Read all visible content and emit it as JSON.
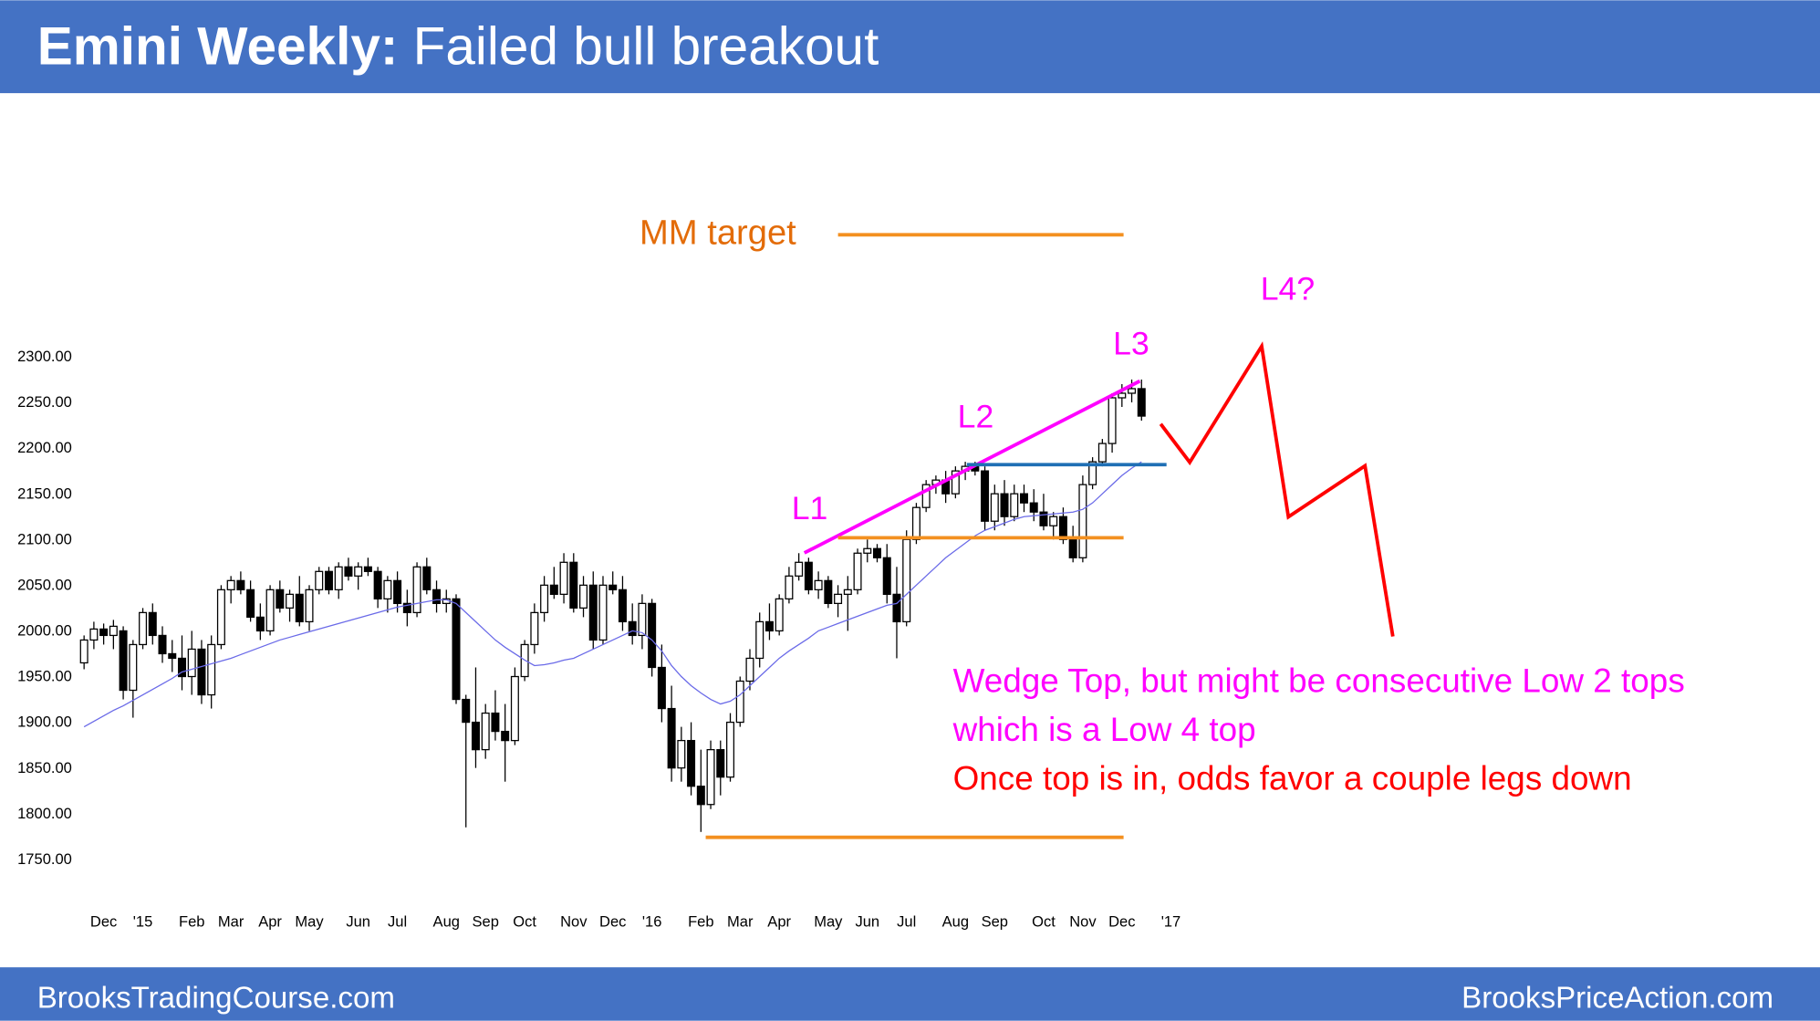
{
  "chart_data": {
    "type": "candlestick",
    "title_bold": "Emini Weekly:",
    "title_rest": "Failed bull breakout",
    "footer_left": "BrooksTradingCourse.com",
    "footer_right": "BrooksPriceAction.com",
    "up_color": "#ffffff",
    "down_color": "#000000",
    "ma_color": "#6a6ae8",
    "ylim": [
      1750,
      2300
    ],
    "yticks": [
      {
        "value": 1750,
        "label": "1750.00"
      },
      {
        "value": 1800,
        "label": "1800.00"
      },
      {
        "value": 1850,
        "label": "1850.00"
      },
      {
        "value": 1900,
        "label": "1900.00"
      },
      {
        "value": 1950,
        "label": "1950.00"
      },
      {
        "value": 2000,
        "label": "2000.00"
      },
      {
        "value": 2050,
        "label": "2050.00"
      },
      {
        "value": 2100,
        "label": "2100.00"
      },
      {
        "value": 2150,
        "label": "2150.00"
      },
      {
        "value": 2200,
        "label": "2200.00"
      },
      {
        "value": 2250,
        "label": "2250.00"
      },
      {
        "value": 2300,
        "label": "2300.00"
      }
    ],
    "xlim": [
      -1,
      123
    ],
    "xticks": [
      {
        "value": 2,
        "label": "Dec"
      },
      {
        "value": 6,
        "label": "'15"
      },
      {
        "value": 11,
        "label": "Feb"
      },
      {
        "value": 15,
        "label": "Mar"
      },
      {
        "value": 19,
        "label": "Apr"
      },
      {
        "value": 23,
        "label": "May"
      },
      {
        "value": 28,
        "label": "Jun"
      },
      {
        "value": 32,
        "label": "Jul"
      },
      {
        "value": 37,
        "label": "Aug"
      },
      {
        "value": 41,
        "label": "Sep"
      },
      {
        "value": 45,
        "label": "Oct"
      },
      {
        "value": 50,
        "label": "Nov"
      },
      {
        "value": 54,
        "label": "Dec"
      },
      {
        "value": 58,
        "label": "'16"
      },
      {
        "value": 63,
        "label": "Feb"
      },
      {
        "value": 67,
        "label": "Mar"
      },
      {
        "value": 71,
        "label": "Apr"
      },
      {
        "value": 76,
        "label": "May"
      },
      {
        "value": 80,
        "label": "Jun"
      },
      {
        "value": 84,
        "label": "Jul"
      },
      {
        "value": 89,
        "label": "Aug"
      },
      {
        "value": 93,
        "label": "Sep"
      },
      {
        "value": 98,
        "label": "Oct"
      },
      {
        "value": 102,
        "label": "Nov"
      },
      {
        "value": 106,
        "label": "Dec"
      },
      {
        "value": 111,
        "label": "'17"
      }
    ],
    "ohlc": [
      [
        1965,
        1995,
        1958,
        1990
      ],
      [
        1990,
        2010,
        1980,
        2002
      ],
      [
        2002,
        2008,
        1985,
        1995
      ],
      [
        1995,
        2012,
        1980,
        2005
      ],
      [
        2000,
        2005,
        1925,
        1935
      ],
      [
        1935,
        1990,
        1905,
        1985
      ],
      [
        1985,
        2025,
        1980,
        2020
      ],
      [
        2020,
        2030,
        1985,
        1995
      ],
      [
        1995,
        2005,
        1965,
        1975
      ],
      [
        1975,
        1990,
        1955,
        1970
      ],
      [
        1970,
        1995,
        1935,
        1950
      ],
      [
        1950,
        2000,
        1930,
        1980
      ],
      [
        1980,
        1990,
        1920,
        1930
      ],
      [
        1930,
        1995,
        1915,
        1985
      ],
      [
        1985,
        2050,
        1980,
        2045
      ],
      [
        2045,
        2060,
        2030,
        2055
      ],
      [
        2055,
        2065,
        2040,
        2045
      ],
      [
        2045,
        2055,
        2010,
        2015
      ],
      [
        2015,
        2030,
        1990,
        2000
      ],
      [
        2000,
        2050,
        1995,
        2045
      ],
      [
        2045,
        2055,
        2020,
        2025
      ],
      [
        2025,
        2045,
        2010,
        2040
      ],
      [
        2040,
        2060,
        2005,
        2010
      ],
      [
        2010,
        2050,
        2000,
        2045
      ],
      [
        2045,
        2070,
        2040,
        2065
      ],
      [
        2065,
        2070,
        2040,
        2045
      ],
      [
        2045,
        2075,
        2035,
        2070
      ],
      [
        2070,
        2080,
        2055,
        2060
      ],
      [
        2060,
        2075,
        2045,
        2070
      ],
      [
        2070,
        2080,
        2060,
        2065
      ],
      [
        2065,
        2070,
        2025,
        2035
      ],
      [
        2035,
        2060,
        2020,
        2055
      ],
      [
        2055,
        2065,
        2020,
        2030
      ],
      [
        2030,
        2045,
        2005,
        2020
      ],
      [
        2020,
        2075,
        2015,
        2070
      ],
      [
        2070,
        2080,
        2040,
        2045
      ],
      [
        2045,
        2055,
        2020,
        2030
      ],
      [
        2030,
        2045,
        2020,
        2035
      ],
      [
        2035,
        2040,
        1920,
        1925
      ],
      [
        1925,
        1930,
        1785,
        1900
      ],
      [
        1900,
        1960,
        1850,
        1870
      ],
      [
        1870,
        1920,
        1860,
        1910
      ],
      [
        1910,
        1935,
        1880,
        1890
      ],
      [
        1890,
        1920,
        1835,
        1880
      ],
      [
        1880,
        1960,
        1875,
        1950
      ],
      [
        1950,
        1990,
        1945,
        1985
      ],
      [
        1985,
        2030,
        1975,
        2020
      ],
      [
        2020,
        2060,
        2010,
        2050
      ],
      [
        2050,
        2070,
        2035,
        2040
      ],
      [
        2040,
        2085,
        2030,
        2075
      ],
      [
        2075,
        2085,
        2020,
        2025
      ],
      [
        2025,
        2060,
        2015,
        2050
      ],
      [
        2050,
        2065,
        1980,
        1990
      ],
      [
        1990,
        2060,
        1985,
        2050
      ],
      [
        2050,
        2065,
        2040,
        2045
      ],
      [
        2045,
        2060,
        2000,
        2010
      ],
      [
        2010,
        2030,
        1985,
        1995
      ],
      [
        1995,
        2040,
        1980,
        2030
      ],
      [
        2030,
        2035,
        1950,
        1960
      ],
      [
        1960,
        1985,
        1900,
        1915
      ],
      [
        1915,
        1940,
        1835,
        1850
      ],
      [
        1850,
        1895,
        1835,
        1880
      ],
      [
        1880,
        1900,
        1820,
        1830
      ],
      [
        1830,
        1870,
        1780,
        1810
      ],
      [
        1810,
        1880,
        1805,
        1870
      ],
      [
        1870,
        1880,
        1820,
        1840
      ],
      [
        1840,
        1910,
        1835,
        1900
      ],
      [
        1900,
        1950,
        1895,
        1945
      ],
      [
        1945,
        1980,
        1935,
        1970
      ],
      [
        1970,
        2020,
        1960,
        2010
      ],
      [
        2010,
        2030,
        1990,
        2000
      ],
      [
        2000,
        2040,
        1995,
        2035
      ],
      [
        2035,
        2070,
        2030,
        2060
      ],
      [
        2060,
        2085,
        2055,
        2075
      ],
      [
        2075,
        2080,
        2040,
        2045
      ],
      [
        2045,
        2065,
        2035,
        2055
      ],
      [
        2055,
        2060,
        2025,
        2030
      ],
      [
        2030,
        2050,
        2015,
        2040
      ],
      [
        2040,
        2060,
        2000,
        2045
      ],
      [
        2045,
        2090,
        2040,
        2085
      ],
      [
        2085,
        2100,
        2075,
        2090
      ],
      [
        2090,
        2095,
        2075,
        2080
      ],
      [
        2080,
        2095,
        2030,
        2040
      ],
      [
        2040,
        2070,
        1970,
        2010
      ],
      [
        2010,
        2110,
        2005,
        2100
      ],
      [
        2100,
        2140,
        2095,
        2135
      ],
      [
        2135,
        2165,
        2130,
        2160
      ],
      [
        2160,
        2170,
        2150,
        2165
      ],
      [
        2165,
        2175,
        2140,
        2150
      ],
      [
        2150,
        2180,
        2145,
        2175
      ],
      [
        2175,
        2185,
        2165,
        2180
      ],
      [
        2180,
        2185,
        2170,
        2175
      ],
      [
        2175,
        2180,
        2110,
        2120
      ],
      [
        2120,
        2160,
        2110,
        2150
      ],
      [
        2150,
        2165,
        2115,
        2125
      ],
      [
        2125,
        2160,
        2120,
        2150
      ],
      [
        2150,
        2160,
        2130,
        2140
      ],
      [
        2140,
        2155,
        2120,
        2130
      ],
      [
        2130,
        2150,
        2110,
        2115
      ],
      [
        2115,
        2130,
        2100,
        2125
      ],
      [
        2125,
        2135,
        2095,
        2100
      ],
      [
        2100,
        2115,
        2075,
        2080
      ],
      [
        2080,
        2170,
        2075,
        2160
      ],
      [
        2160,
        2190,
        2155,
        2185
      ],
      [
        2185,
        2210,
        2180,
        2205
      ],
      [
        2205,
        2260,
        2195,
        2255
      ],
      [
        2255,
        2270,
        2245,
        2260
      ],
      [
        2260,
        2275,
        2250,
        2265
      ],
      [
        2265,
        2275,
        2230,
        2235
      ]
    ],
    "ma_values": [
      1895,
      1901,
      1907,
      1913,
      1918,
      1924,
      1930,
      1936,
      1942,
      1948,
      1955,
      1958,
      1961,
      1964,
      1967,
      1970,
      1974,
      1978,
      1982,
      1986,
      1990,
      1993,
      1996,
      1999,
      2002,
      2005,
      2008,
      2011,
      2014,
      2017,
      2020,
      2023,
      2026,
      2028,
      2030,
      2032,
      2034,
      2034,
      2030,
      2020,
      2010,
      2000,
      1990,
      1982,
      1975,
      1968,
      1962,
      1963,
      1965,
      1968,
      1970,
      1975,
      1980,
      1985,
      1990,
      1995,
      2000,
      1998,
      1990,
      1978,
      1962,
      1950,
      1940,
      1932,
      1925,
      1920,
      1923,
      1930,
      1940,
      1950,
      1960,
      1970,
      1978,
      1985,
      1992,
      2000,
      2004,
      2008,
      2012,
      2016,
      2020,
      2024,
      2028,
      2030,
      2040,
      2050,
      2060,
      2070,
      2080,
      2088,
      2096,
      2104,
      2110,
      2114,
      2118,
      2122,
      2125,
      2126,
      2127,
      2128,
      2129,
      2130,
      2133,
      2140,
      2150,
      2160,
      2170,
      2178,
      2185
    ],
    "annotations": {
      "mm_target": "MM target",
      "l1": "L1",
      "l2": "L2",
      "l3": "L3",
      "l4": "L4?"
    },
    "notes": [
      "Wedge Top, but might be consecutive Low 2 tops",
      "which is a Low 4 top",
      "Once top is in, odds favor a couple legs down"
    ]
  }
}
